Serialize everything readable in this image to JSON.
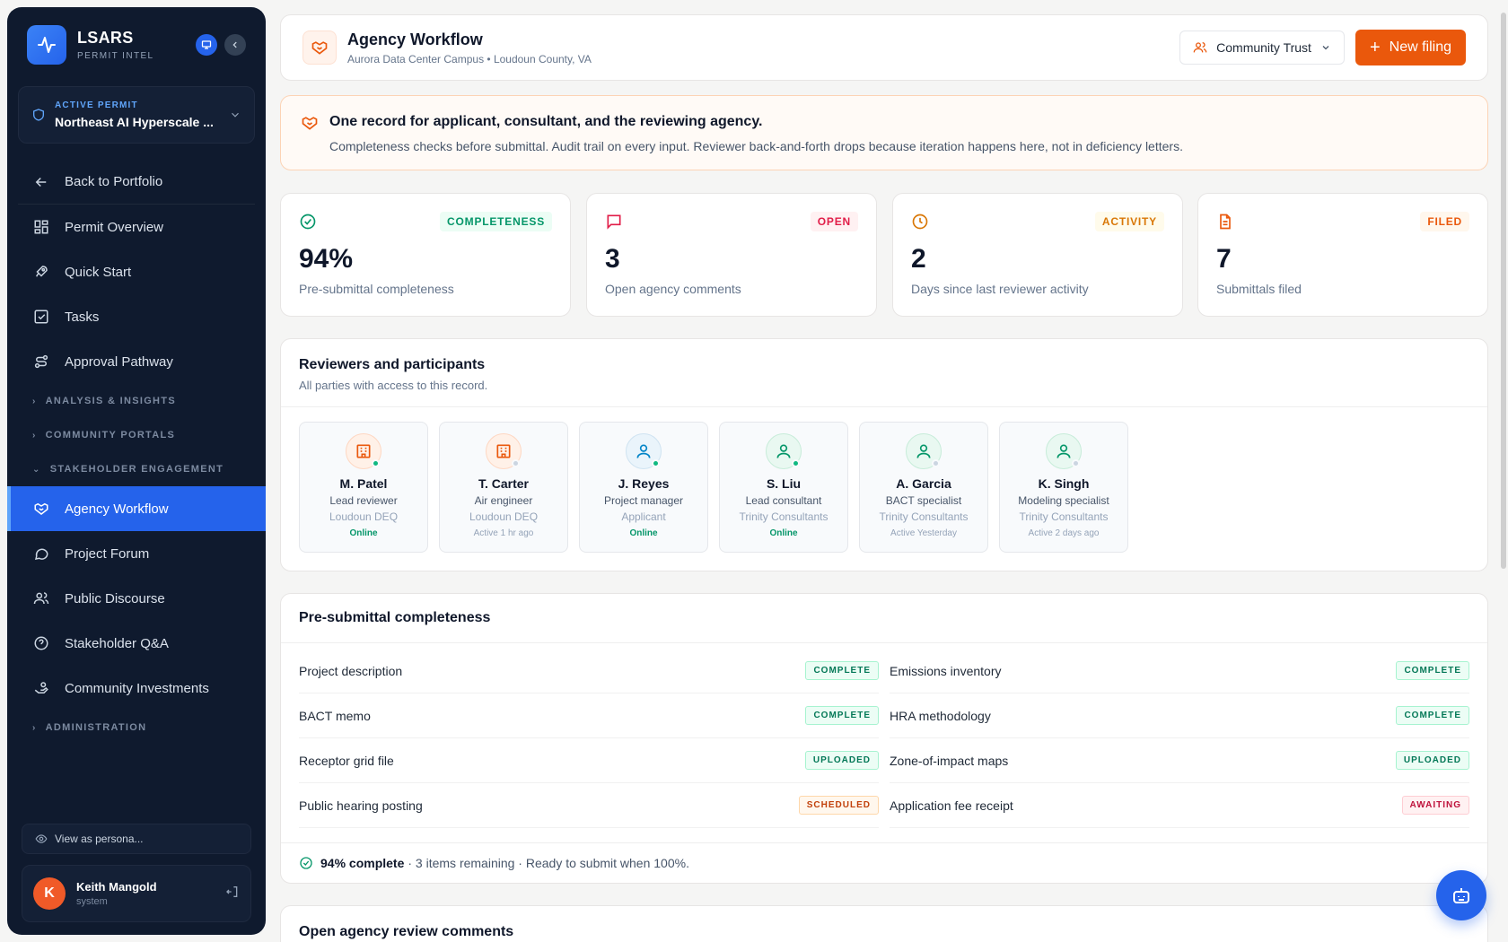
{
  "brand": {
    "name": "LSARS",
    "subtitle": "PERMIT INTEL"
  },
  "permit": {
    "label": "ACTIVE PERMIT",
    "name": "Northeast AI Hyperscale ..."
  },
  "nav": {
    "back": "Back to Portfolio",
    "items": [
      "Permit Overview",
      "Quick Start",
      "Tasks",
      "Approval Pathway"
    ],
    "sections": {
      "analysis": "ANALYSIS & INSIGHTS",
      "portals": "COMMUNITY PORTALS",
      "stakeholder": "STAKEHOLDER ENGAGEMENT",
      "admin": "ADMINISTRATION"
    },
    "stakeholder_items": [
      "Agency Workflow",
      "Project Forum",
      "Public Discourse",
      "Stakeholder Q&A",
      "Community Investments"
    ]
  },
  "persona": {
    "placeholder": "View as persona..."
  },
  "user": {
    "name": "Keith Mangold",
    "role": "system",
    "initial": "K"
  },
  "header": {
    "title": "Agency Workflow",
    "subtitle": "Aurora Data Center Campus • Loudoun County, VA",
    "dropdown": "Community Trust",
    "new_button": "New filing"
  },
  "banner": {
    "title": "One record for applicant, consultant, and the reviewing agency.",
    "text": "Completeness checks before submittal. Audit trail on every input. Reviewer back-and-forth drops because iteration happens here, not in deficiency letters."
  },
  "stats": [
    {
      "badge": "COMPLETENESS",
      "value": "94%",
      "label": "Pre-submittal completeness",
      "color": "#059669",
      "bg": "#ecfdf5"
    },
    {
      "badge": "OPEN",
      "value": "3",
      "label": "Open agency comments",
      "color": "#e11d48",
      "bg": "#fff1f2"
    },
    {
      "badge": "ACTIVITY",
      "value": "2",
      "label": "Days since last reviewer activity",
      "color": "#d97706",
      "bg": "#fffbeb"
    },
    {
      "badge": "FILED",
      "value": "7",
      "label": "Submittals filed",
      "color": "#ea580c",
      "bg": "#fff7ed"
    }
  ],
  "reviewers": {
    "title": "Reviewers and participants",
    "subtitle": "All parties with access to this record.",
    "people": [
      {
        "name": "M. Patel",
        "role": "Lead reviewer",
        "org": "Loudoun DEQ",
        "status": "Online"
      },
      {
        "name": "T. Carter",
        "role": "Air engineer",
        "org": "Loudoun DEQ",
        "status": "Active 1 hr ago"
      },
      {
        "name": "J. Reyes",
        "role": "Project manager",
        "org": "Applicant",
        "status": "Online"
      },
      {
        "name": "S. Liu",
        "role": "Lead consultant",
        "org": "Trinity Consultants",
        "status": "Online"
      },
      {
        "name": "A. Garcia",
        "role": "BACT specialist",
        "org": "Trinity Consultants",
        "status": "Active Yesterday"
      },
      {
        "name": "K. Singh",
        "role": "Modeling specialist",
        "org": "Trinity Consultants",
        "status": "Active 2 days ago"
      }
    ]
  },
  "completeness": {
    "title": "Pre-submittal completeness",
    "left": [
      {
        "label": "Project description",
        "status": "COMPLETE"
      },
      {
        "label": "BACT memo",
        "status": "COMPLETE"
      },
      {
        "label": "Receptor grid file",
        "status": "UPLOADED"
      },
      {
        "label": "Public hearing posting",
        "status": "SCHEDULED"
      }
    ],
    "right": [
      {
        "label": "Emissions inventory",
        "status": "COMPLETE"
      },
      {
        "label": "HRA methodology",
        "status": "COMPLETE"
      },
      {
        "label": "Zone-of-impact maps",
        "status": "UPLOADED"
      },
      {
        "label": "Application fee receipt",
        "status": "AWAITING"
      }
    ],
    "footer_bold": "94% complete",
    "footer_text": "· 3 items remaining · Ready to submit when 100%."
  },
  "comments": {
    "title": "Open agency review comments"
  }
}
